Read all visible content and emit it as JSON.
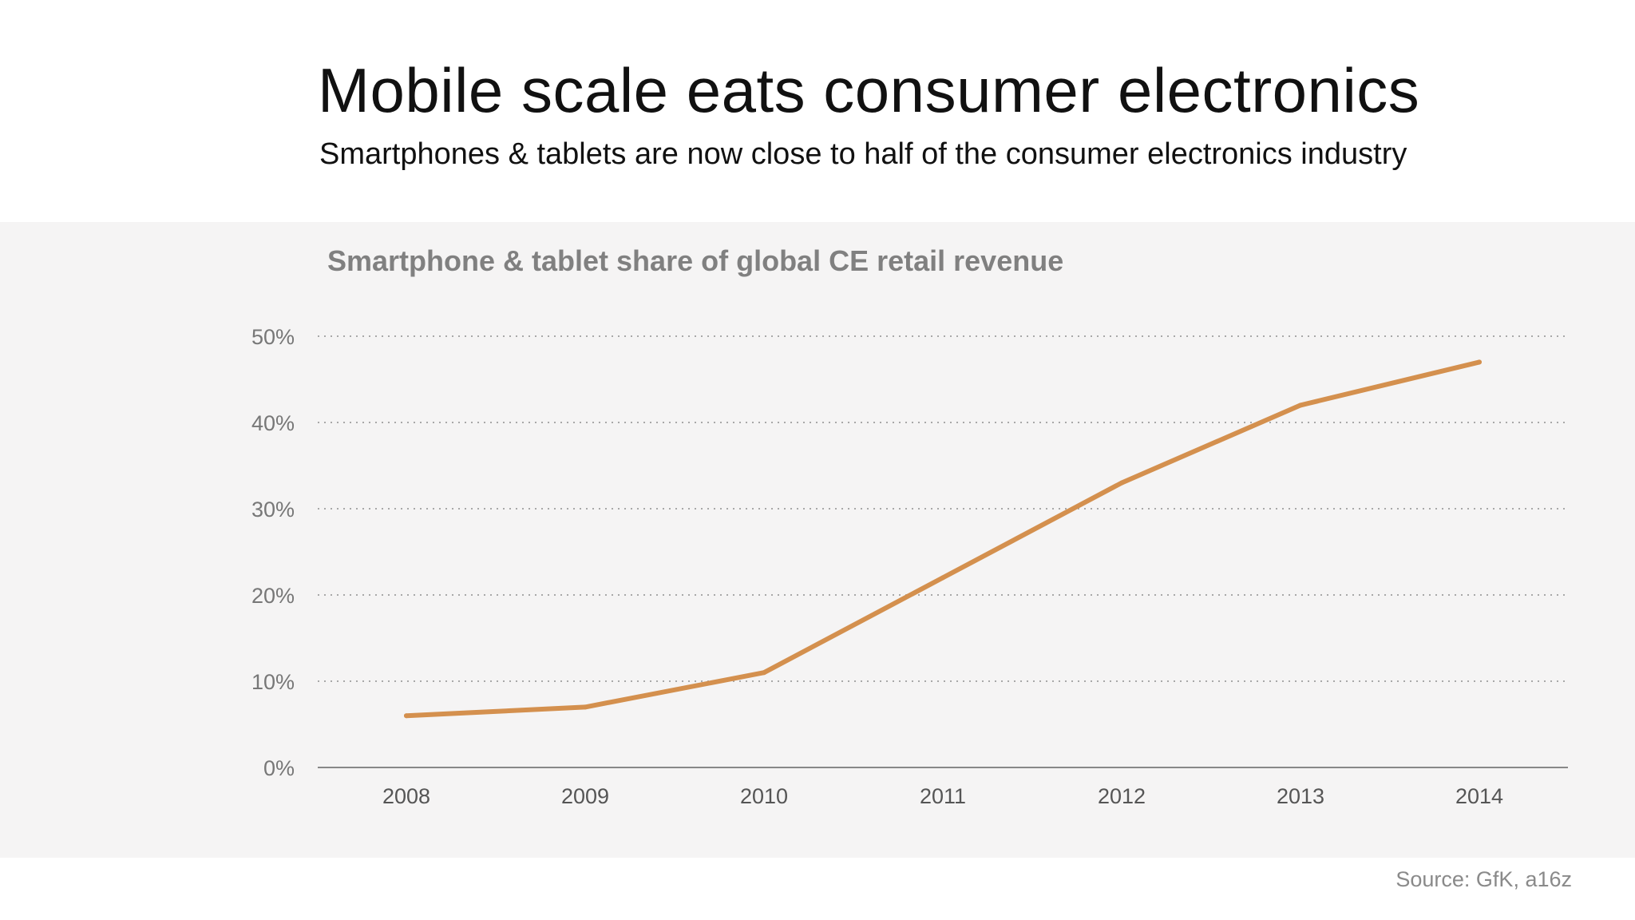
{
  "slide": {
    "title": "Mobile scale eats consumer electronics",
    "subtitle": "Smartphones & tablets are now close to half of the consumer electronics industry",
    "source": "Source: GfK, a16z"
  },
  "colors": {
    "line": "#d4904e",
    "panel_background": "#f5f4f4",
    "grid": "#a8a8a8",
    "axis_text": "#777777",
    "chart_title": "#808080"
  },
  "chart_data": {
    "type": "line",
    "title": "Smartphone & tablet share of global CE retail revenue",
    "xlabel": "",
    "ylabel": "",
    "categories": [
      "2008",
      "2009",
      "2010",
      "2011",
      "2012",
      "2013",
      "2014"
    ],
    "series": [
      {
        "values": [
          6,
          7,
          11,
          22,
          33,
          42,
          47
        ]
      }
    ],
    "ylim": [
      0,
      50
    ],
    "yticks": [
      0,
      10,
      20,
      30,
      40,
      50
    ],
    "ytick_labels": [
      "0%",
      "10%",
      "20%",
      "30%",
      "40%",
      "50%"
    ],
    "grid": true,
    "grid_style": "dotted",
    "legend": "none"
  }
}
